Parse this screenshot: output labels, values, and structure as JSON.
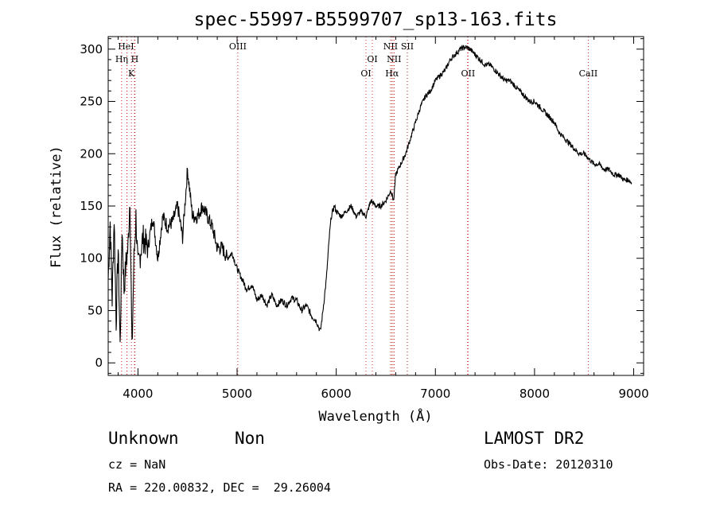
{
  "chart_data": {
    "type": "line",
    "title": "spec-55997-B5599707_sp13-163.fits",
    "xlabel": "Wavelength (Å)",
    "ylabel": "Flux (relative)",
    "xlim": [
      3700,
      9100
    ],
    "ylim": [
      -12,
      312
    ],
    "xticks": [
      4000,
      5000,
      6000,
      7000,
      8000,
      9000
    ],
    "yticks": [
      0,
      50,
      100,
      150,
      200,
      250,
      300
    ],
    "grid": false,
    "line_color": "#000000",
    "marker_color": "#cc2222",
    "series": [
      {
        "x": [
          3700,
          3720,
          3740,
          3760,
          3780,
          3800,
          3820,
          3840,
          3860,
          3880,
          3900,
          3920,
          3940,
          3960,
          3980,
          4000,
          4050,
          4100,
          4150,
          4200,
          4250,
          4300,
          4350,
          4400,
          4450,
          4500,
          4550,
          4600,
          4650,
          4700,
          4750,
          4800,
          4850,
          4900,
          4950,
          5000,
          5050,
          5100,
          5150,
          5200,
          5250,
          5300,
          5350,
          5400,
          5450,
          5500,
          5550,
          5600,
          5650,
          5700,
          5750,
          5800,
          5840,
          5860,
          5900,
          5930,
          5950,
          5980,
          6000,
          6050,
          6100,
          6150,
          6200,
          6250,
          6300,
          6350,
          6400,
          6450,
          6500,
          6550,
          6580,
          6600,
          6650,
          6700,
          6750,
          6800,
          6850,
          6900,
          6950,
          7000,
          7050,
          7100,
          7150,
          7200,
          7250,
          7300,
          7350,
          7400,
          7450,
          7500,
          7550,
          7600,
          7650,
          7700,
          7750,
          7800,
          7850,
          7900,
          7950,
          8000,
          8050,
          8100,
          8150,
          8200,
          8250,
          8300,
          8350,
          8400,
          8450,
          8500,
          8550,
          8600,
          8650,
          8700,
          8750,
          8800,
          8850,
          8900,
          8950,
          8980
        ],
        "y": [
          80,
          135,
          60,
          140,
          40,
          110,
          15,
          130,
          70,
          95,
          110,
          160,
          10,
          100,
          140,
          90,
          120,
          110,
          140,
          100,
          140,
          130,
          135,
          150,
          120,
          185,
          140,
          140,
          150,
          140,
          130,
          110,
          110,
          100,
          105,
          90,
          80,
          70,
          75,
          60,
          65,
          55,
          65,
          55,
          60,
          55,
          62,
          60,
          50,
          55,
          45,
          40,
          30,
          45,
          80,
          120,
          140,
          150,
          145,
          140,
          145,
          150,
          140,
          145,
          140,
          155,
          150,
          150,
          155,
          165,
          155,
          180,
          190,
          200,
          215,
          230,
          245,
          255,
          260,
          270,
          275,
          280,
          290,
          295,
          300,
          302,
          300,
          295,
          290,
          285,
          285,
          280,
          275,
          270,
          270,
          265,
          260,
          255,
          250,
          250,
          245,
          240,
          235,
          230,
          220,
          215,
          210,
          205,
          200,
          200,
          195,
          190,
          190,
          185,
          185,
          180,
          180,
          175,
          175,
          172
        ]
      }
    ],
    "annotations": [
      {
        "text": "HeI",
        "x": 3880,
        "row": 1,
        "line": 3888
      },
      {
        "text": "Hη",
        "x": 3836,
        "row": 2,
        "line": 3835
      },
      {
        "text": "H",
        "x": 3968,
        "row": 2,
        "line": 3970
      },
      {
        "text": "K",
        "x": 3934,
        "row": 3,
        "line": 3934
      },
      {
        "text": "OIII",
        "x": 5007,
        "row": 1,
        "line": 5007
      },
      {
        "text": "OI",
        "x": 6364,
        "row": 2,
        "line": 6364
      },
      {
        "text": "OI",
        "x": 6300,
        "row": 3,
        "line": 6300
      },
      {
        "text": "NII",
        "x": 6548,
        "row": 1,
        "line": 6548
      },
      {
        "text": "SII",
        "x": 6717,
        "row": 1,
        "line": 6717
      },
      {
        "text": "NII",
        "x": 6583,
        "row": 2,
        "line": 6583
      },
      {
        "text": "Hα",
        "x": 6563,
        "row": 3,
        "line": 6563
      },
      {
        "text": "OII",
        "x": 7330,
        "row": 3,
        "line": 7330
      },
      {
        "text": "CaII",
        "x": 8542,
        "row": 3,
        "line": 8542
      }
    ],
    "extra_marker_lines": [
      3890,
      3965,
      6563,
      6583,
      7325
    ]
  },
  "info": {
    "class": "Unknown",
    "subclass": "Non",
    "survey": "LAMOST DR2",
    "cz": "cz = NaN",
    "obs_date": "Obs-Date: 20120310",
    "coords": "RA = 220.00832, DEC =  29.26004"
  }
}
